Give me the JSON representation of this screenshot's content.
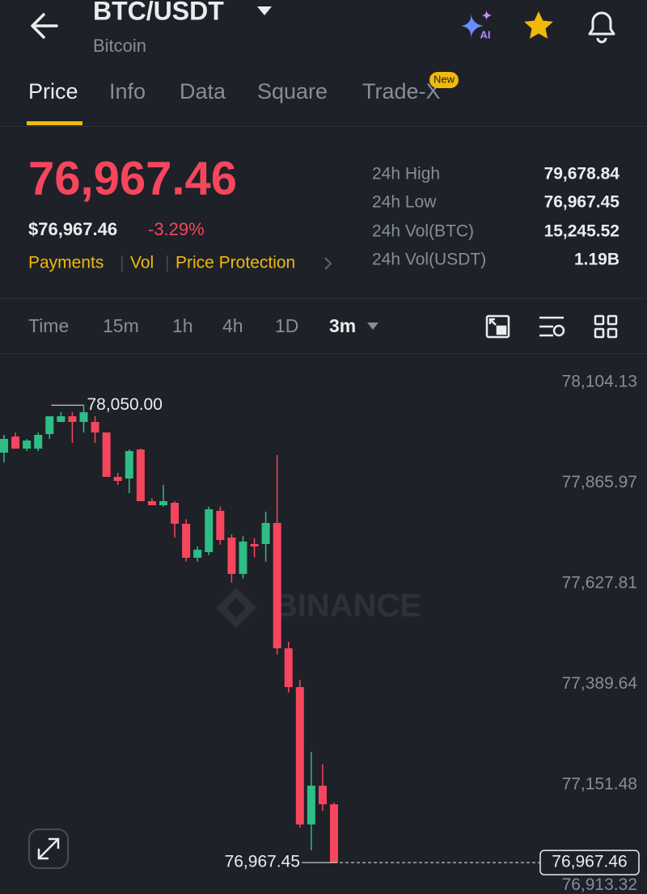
{
  "header": {
    "pair": "BTC/USDT",
    "name": "Bitcoin"
  },
  "tabs": [
    "Price",
    "Info",
    "Data",
    "Square",
    "Trade-X"
  ],
  "tab_badge": "New",
  "price": {
    "last": "76,967.46",
    "usd": "$76,967.46",
    "change": "-3.29%",
    "links": [
      "Payments",
      "Vol",
      "Price Protection"
    ]
  },
  "stats": [
    {
      "label": "24h High",
      "value": "79,678.84"
    },
    {
      "label": "24h Low",
      "value": "76,967.45"
    },
    {
      "label": "24h Vol(BTC)",
      "value": "15,245.52"
    },
    {
      "label": "24h Vol(USDT)",
      "value": "1.19B"
    }
  ],
  "intervals": [
    "Time",
    "15m",
    "1h",
    "4h",
    "1D",
    "3m"
  ],
  "chart_data": {
    "type": "candlestick",
    "watermark": "BINANCE",
    "up_color": "#2ebd85",
    "down_color": "#f6465d",
    "ylim": [
      76893.2,
      78167.26
    ],
    "yticks": [
      {
        "value": 78104.13,
        "label": "78,104.13"
      },
      {
        "value": 77865.97,
        "label": "77,865.97"
      },
      {
        "value": 77627.81,
        "label": "77,627.81"
      },
      {
        "value": 77389.64,
        "label": "77,389.64"
      },
      {
        "value": 77151.48,
        "label": "77,151.48"
      },
      {
        "value": 76913.32,
        "label": "76,913.32"
      }
    ],
    "open": [
      77937.7,
      77975.9,
      77947.3,
      77947.3,
      77981.7,
      78010.4,
      78023.8,
      78010.4,
      78010.4,
      77985.5,
      77880.3,
      77876.5,
      77945.3,
      77822.9,
      77813.3,
      77819.1,
      77769.4,
      77689.0,
      77702.4,
      77800.0,
      77736.8,
      77650.7,
      77721.5,
      77721.5,
      77771.3,
      77474.7,
      77382.9,
      77057.7,
      77149.6,
      77105.5
    ],
    "high": [
      77979.8,
      77985.5,
      77970.2,
      77985.5,
      78023.8,
      78033.4,
      78033.4,
      78050,
      78023.8,
      77985.5,
      77890,
      77945.3,
      77947.3,
      77830,
      77861.2,
      77822.9,
      77780,
      77715.8,
      77810,
      77810,
      77745,
      77740,
      77735,
      77798.1,
      77931.9,
      77490,
      77400,
      77229.9,
      77200,
      77110
    ],
    "low": [
      77914.7,
      77947.3,
      77941.5,
      77941.5,
      77970.2,
      78010.4,
      77960.6,
      77985.5,
      77960.6,
      77880.3,
      77861.2,
      77842.0,
      77822.9,
      77813.3,
      77810,
      77736.8,
      77680,
      77680,
      77695,
      77720,
      77630,
      77640,
      77690,
      77680,
      77460,
      77370,
      77050,
      76996.5,
      77090,
      76967.45
    ],
    "close": [
      77970.2,
      77947.3,
      77966.4,
      77979.8,
      78023.8,
      78023.8,
      78010.4,
      78033.4,
      77985.5,
      77880.3,
      77870.7,
      77941.5,
      77822.9,
      77813.3,
      77822.9,
      77769.4,
      77689.0,
      77708.1,
      77803.8,
      77731.1,
      77650.7,
      77727.3,
      77715.8,
      77771.3,
      77474.7,
      77382.9,
      77057.7,
      77149.6,
      77105.5,
      76967.46
    ],
    "high_label": {
      "value": 78050,
      "label": "78,050.00"
    },
    "low_label": {
      "value": 76967.45,
      "label": "76,967.45"
    },
    "last_price": {
      "value": 76967.46,
      "label": "76,967.46"
    }
  }
}
